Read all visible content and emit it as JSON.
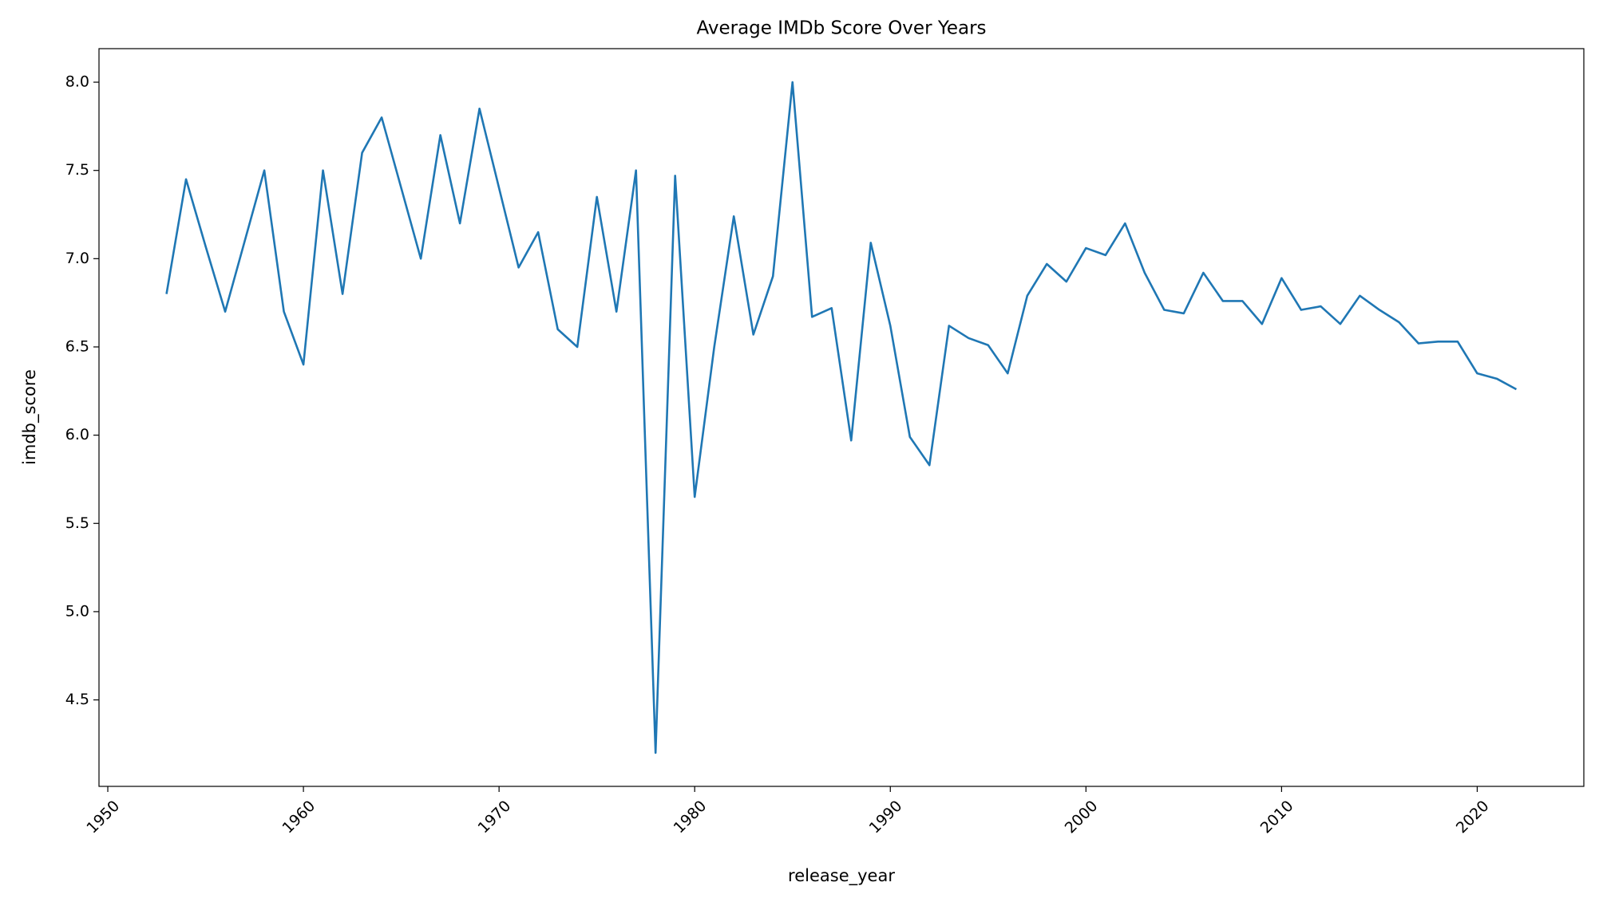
{
  "chart_data": {
    "type": "line",
    "title": "Average IMDb Score Over Years",
    "x_label": "release_year",
    "y_label": "imdb_score",
    "color": "#1f77b4",
    "x": [
      1953,
      1954,
      1955,
      1956,
      1957,
      1958,
      1959,
      1960,
      1961,
      1962,
      1963,
      1964,
      1965,
      1966,
      1967,
      1968,
      1969,
      1970,
      1971,
      1972,
      1973,
      1974,
      1975,
      1976,
      1977,
      1978,
      1979,
      1980,
      1981,
      1982,
      1983,
      1984,
      1985,
      1986,
      1987,
      1988,
      1989,
      1990,
      1991,
      1992,
      1993,
      1994,
      1995,
      1996,
      1997,
      1998,
      1999,
      2000,
      2001,
      2002,
      2003,
      2004,
      2005,
      2006,
      2007,
      2008,
      2009,
      2010,
      2011,
      2012,
      2013,
      2014,
      2015,
      2016,
      2017,
      2018,
      2019,
      2020,
      2021,
      2022
    ],
    "values": [
      6.8,
      7.45,
      7.07,
      6.7,
      7.1,
      7.5,
      6.7,
      6.4,
      7.5,
      6.8,
      7.6,
      7.8,
      7.4,
      7.0,
      7.7,
      7.2,
      7.85,
      7.4,
      6.95,
      7.15,
      6.6,
      6.5,
      7.35,
      6.7,
      7.5,
      4.2,
      7.47,
      5.65,
      6.5,
      7.24,
      6.57,
      6.9,
      8.0,
      6.67,
      6.72,
      5.97,
      7.09,
      6.62,
      5.99,
      5.83,
      6.62,
      6.55,
      6.51,
      6.35,
      6.79,
      6.97,
      6.87,
      7.06,
      7.02,
      7.2,
      6.92,
      6.71,
      6.69,
      6.92,
      6.76,
      6.76,
      6.63,
      6.89,
      6.71,
      6.73,
      6.63,
      6.79,
      6.71,
      6.64,
      6.52,
      6.53,
      6.53,
      6.35,
      6.32,
      6.26
    ],
    "xlim": [
      1949.55,
      2025.45
    ],
    "ylim": [
      4.01,
      8.19
    ],
    "xticks": [
      1950,
      1960,
      1970,
      1980,
      1990,
      2000,
      2010,
      2020
    ],
    "yticks": [
      4.5,
      {
        "value": 5,
        "label": "5.0"
      },
      5.5,
      {
        "value": 6,
        "label": "6.0"
      },
      6.5,
      {
        "value": 7,
        "label": "7.0"
      },
      7.5,
      {
        "value": 8,
        "label": "8.0"
      }
    ]
  }
}
